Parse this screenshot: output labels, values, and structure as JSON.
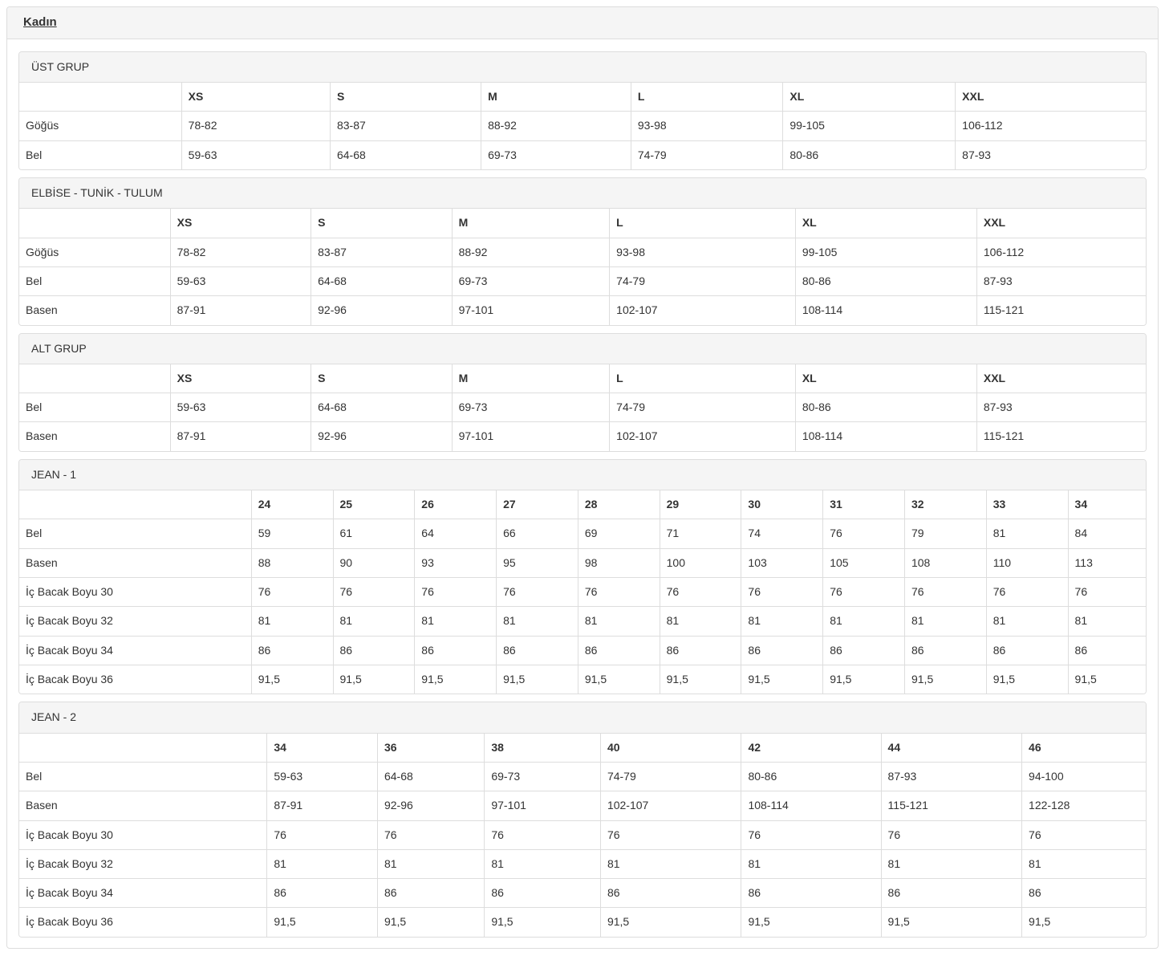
{
  "page": {
    "title": "Kadın"
  },
  "colors": {
    "panel_border": "#dddddd",
    "heading_background": "#f5f5f5",
    "text": "#333333",
    "page_background": "#ffffff"
  },
  "sections": [
    {
      "heading": "ÜST GRUP",
      "columns": [
        "",
        "XS",
        "S",
        "M",
        "L",
        "XL",
        "XXL"
      ],
      "col_widths": [
        "14.4%",
        "13.2%",
        "13.4%",
        "13.3%",
        "13.5%",
        "15.3%",
        "16.9%"
      ],
      "rows": [
        {
          "label": "Göğüs",
          "values": [
            "78-82",
            "83-87",
            "88-92",
            "93-98",
            "99-105",
            "106-112"
          ]
        },
        {
          "label": "Bel",
          "values": [
            "59-63",
            "64-68",
            "69-73",
            "74-79",
            "80-86",
            "87-93"
          ]
        }
      ]
    },
    {
      "heading": "ELBİSE - TUNİK - TULUM",
      "columns": [
        "",
        "XS",
        "S",
        "M",
        "L",
        "XL",
        "XXL"
      ],
      "col_widths": [
        "13.4%",
        "12.5%",
        "12.5%",
        "14.0%",
        "16.5%",
        "16.1%",
        "15.0%"
      ],
      "rows": [
        {
          "label": "Göğüs",
          "values": [
            "78-82",
            "83-87",
            "88-92",
            "93-98",
            "99-105",
            "106-112"
          ]
        },
        {
          "label": "Bel",
          "values": [
            "59-63",
            "64-68",
            "69-73",
            "74-79",
            "80-86",
            "87-93"
          ]
        },
        {
          "label": "Basen",
          "values": [
            "87-91",
            "92-96",
            "97-101",
            "102-107",
            "108-114",
            "115-121"
          ]
        }
      ]
    },
    {
      "heading": "ALT GRUP",
      "columns": [
        "",
        "XS",
        "S",
        "M",
        "L",
        "XL",
        "XXL"
      ],
      "col_widths": [
        "13.4%",
        "12.5%",
        "12.5%",
        "14.0%",
        "16.5%",
        "16.1%",
        "15.0%"
      ],
      "rows": [
        {
          "label": "Bel",
          "values": [
            "59-63",
            "64-68",
            "69-73",
            "74-79",
            "80-86",
            "87-93"
          ]
        },
        {
          "label": "Basen",
          "values": [
            "87-91",
            "92-96",
            "97-101",
            "102-107",
            "108-114",
            "115-121"
          ]
        }
      ]
    },
    {
      "heading": "JEAN - 1",
      "columns": [
        "",
        "24",
        "25",
        "26",
        "27",
        "28",
        "29",
        "30",
        "31",
        "32",
        "33",
        "34"
      ],
      "col_widths": [
        "20.6%",
        "7.25%",
        "7.25%",
        "7.25%",
        "7.25%",
        "7.25%",
        "7.25%",
        "7.25%",
        "7.25%",
        "7.25%",
        "7.25%",
        "6.9%"
      ],
      "rows": [
        {
          "label": "Bel",
          "values": [
            "59",
            "61",
            "64",
            "66",
            "69",
            "71",
            "74",
            "76",
            "79",
            "81",
            "84"
          ]
        },
        {
          "label": "Basen",
          "values": [
            "88",
            "90",
            "93",
            "95",
            "98",
            "100",
            "103",
            "105",
            "108",
            "110",
            "113"
          ]
        },
        {
          "label": "İç Bacak Boyu 30",
          "values": [
            "76",
            "76",
            "76",
            "76",
            "76",
            "76",
            "76",
            "76",
            "76",
            "76",
            "76"
          ]
        },
        {
          "label": "İç Bacak Boyu 32",
          "values": [
            "81",
            "81",
            "81",
            "81",
            "81",
            "81",
            "81",
            "81",
            "81",
            "81",
            "81"
          ]
        },
        {
          "label": "İç Bacak Boyu 34",
          "values": [
            "86",
            "86",
            "86",
            "86",
            "86",
            "86",
            "86",
            "86",
            "86",
            "86",
            "86"
          ]
        },
        {
          "label": "İç Bacak Boyu 36",
          "values": [
            "91,5",
            "91,5",
            "91,5",
            "91,5",
            "91,5",
            "91,5",
            "91,5",
            "91,5",
            "91,5",
            "91,5",
            "91,5"
          ]
        }
      ]
    },
    {
      "heading": "JEAN - 2",
      "columns": [
        "",
        "34",
        "36",
        "38",
        "40",
        "42",
        "44",
        "46"
      ],
      "col_widths": [
        "22.0%",
        "9.8%",
        "9.5%",
        "10.3%",
        "12.5%",
        "12.4%",
        "12.5%",
        "11.0%"
      ],
      "rows": [
        {
          "label": "Bel",
          "values": [
            "59-63",
            "64-68",
            "69-73",
            "74-79",
            "80-86",
            "87-93",
            "94-100"
          ]
        },
        {
          "label": "Basen",
          "values": [
            "87-91",
            "92-96",
            "97-101",
            "102-107",
            "108-114",
            "115-121",
            "122-128"
          ]
        },
        {
          "label": "İç Bacak Boyu 30",
          "values": [
            "76",
            "76",
            "76",
            "76",
            "76",
            "76",
            "76"
          ]
        },
        {
          "label": "İç Bacak Boyu 32",
          "values": [
            "81",
            "81",
            "81",
            "81",
            "81",
            "81",
            "81"
          ]
        },
        {
          "label": "İç Bacak Boyu 34",
          "values": [
            "86",
            "86",
            "86",
            "86",
            "86",
            "86",
            "86"
          ]
        },
        {
          "label": "İç Bacak Boyu 36",
          "values": [
            "91,5",
            "91,5",
            "91,5",
            "91,5",
            "91,5",
            "91,5",
            "91,5"
          ]
        }
      ]
    }
  ]
}
